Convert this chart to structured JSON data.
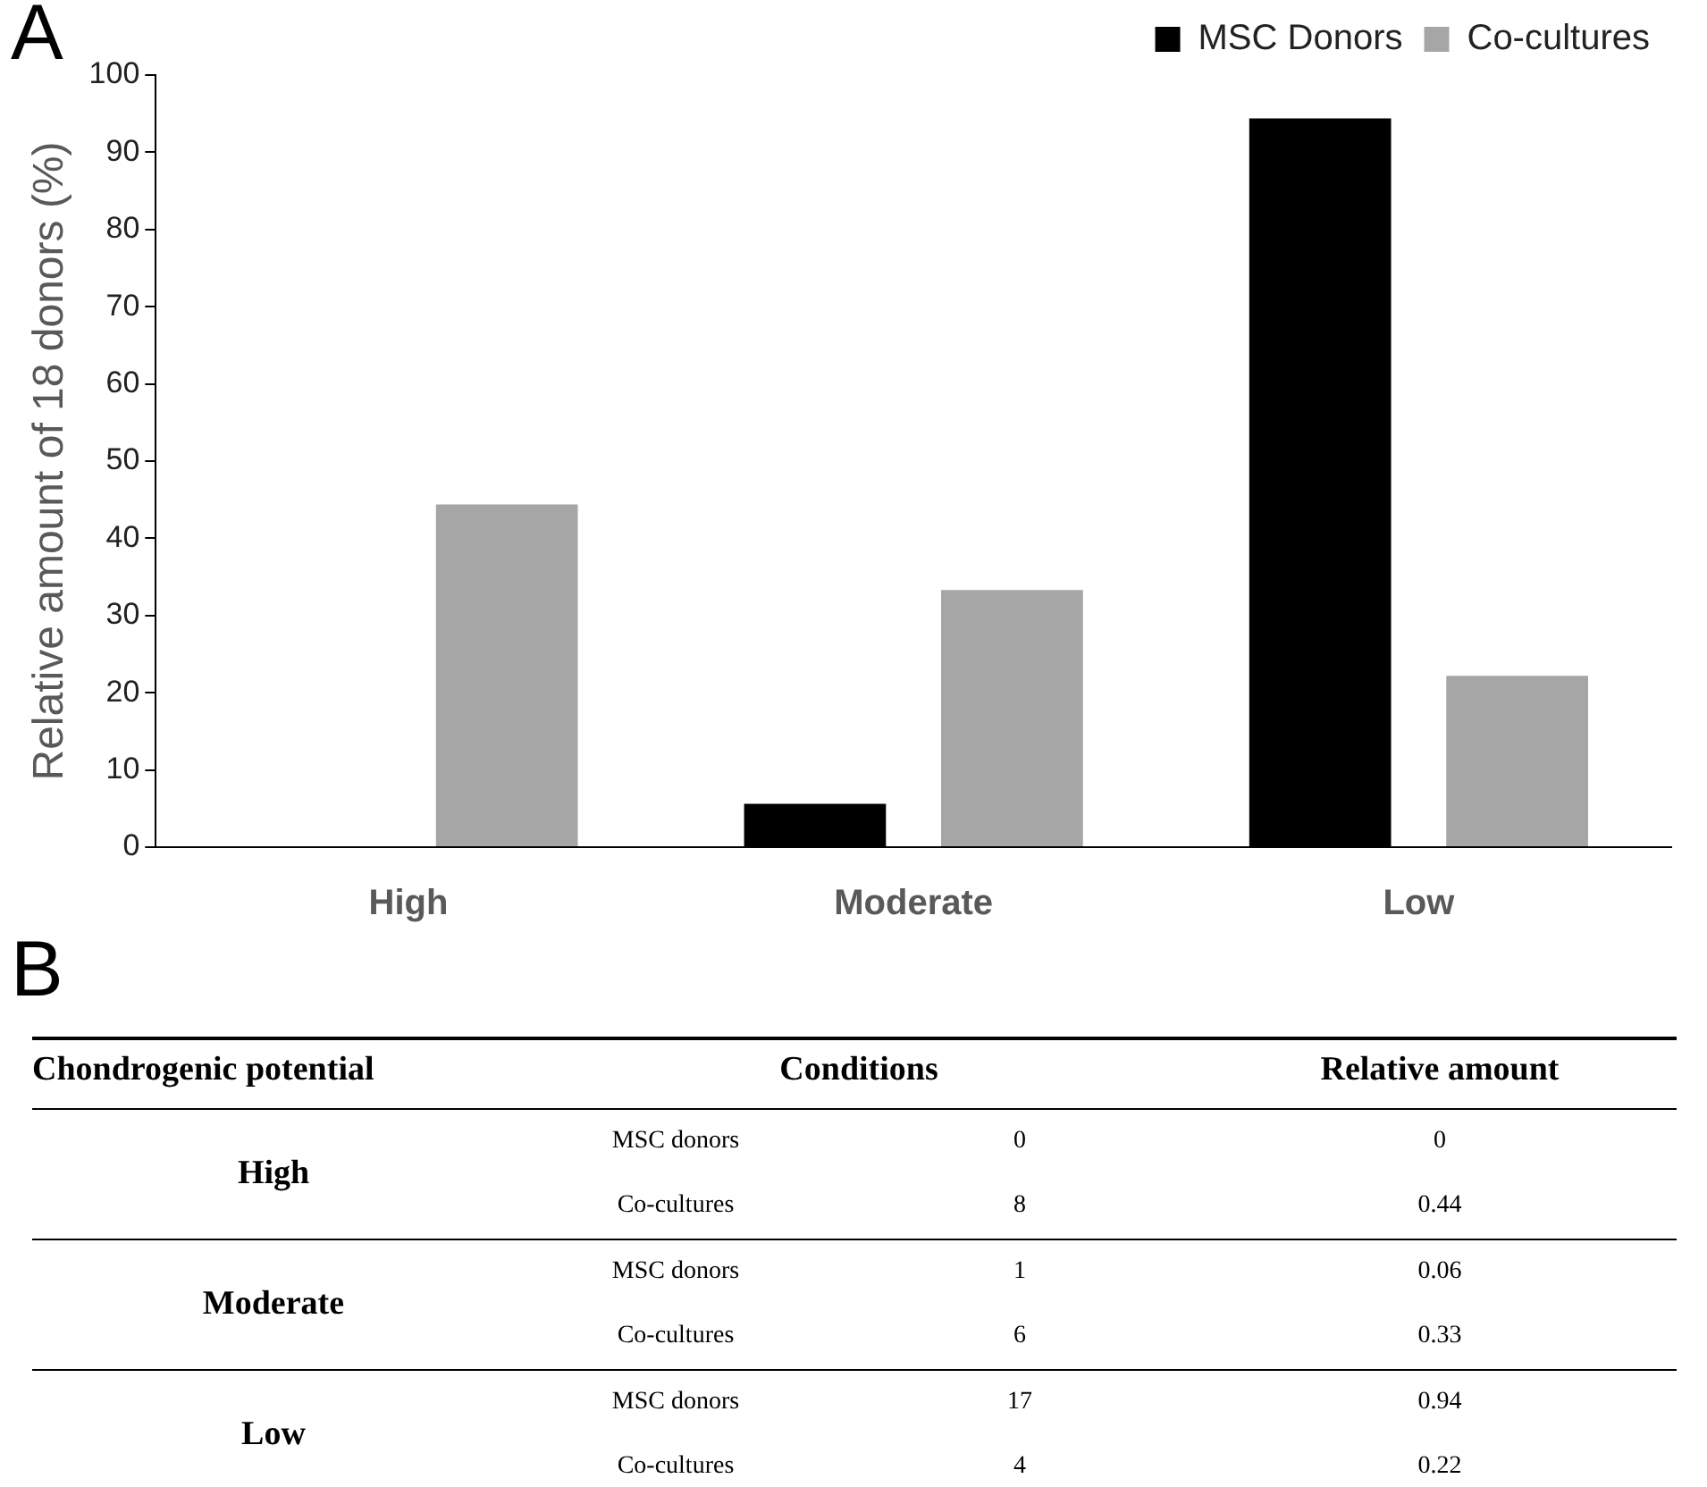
{
  "chart_data": [
    {
      "type": "bar",
      "title": "A",
      "ylabel": "Relative amount of 18 donors (%)",
      "categories": [
        "High",
        "Moderate",
        "Low"
      ],
      "series": [
        {
          "name": "MSC Donors",
          "color": "#000000",
          "values": [
            0,
            5.6,
            94.4
          ]
        },
        {
          "name": "Co-cultures",
          "color": "#a6a6a6",
          "values": [
            44.4,
            33.3,
            22.2
          ]
        }
      ],
      "ylim": [
        0,
        100
      ],
      "yticks": [
        0,
        10,
        20,
        30,
        40,
        50,
        60,
        70,
        80,
        90,
        100
      ],
      "grid": false,
      "legend": "top right"
    },
    {
      "type": "other",
      "title": "B",
      "annotations": [
        "Chondrogenic potential",
        "Conditions",
        "Relative amount"
      ],
      "categories": [
        "High",
        "Moderate",
        "Low"
      ],
      "series": [
        {
          "name": "MSC donors",
          "values": [
            0,
            1,
            17
          ]
        },
        {
          "name": "Co-cultures",
          "values": [
            8,
            6,
            4
          ]
        },
        {
          "values": [
            0,
            0.06,
            0.94
          ]
        },
        {
          "values": [
            0.44,
            0.33,
            0.22
          ]
        }
      ],
      "data_labels": true
    }
  ]
}
